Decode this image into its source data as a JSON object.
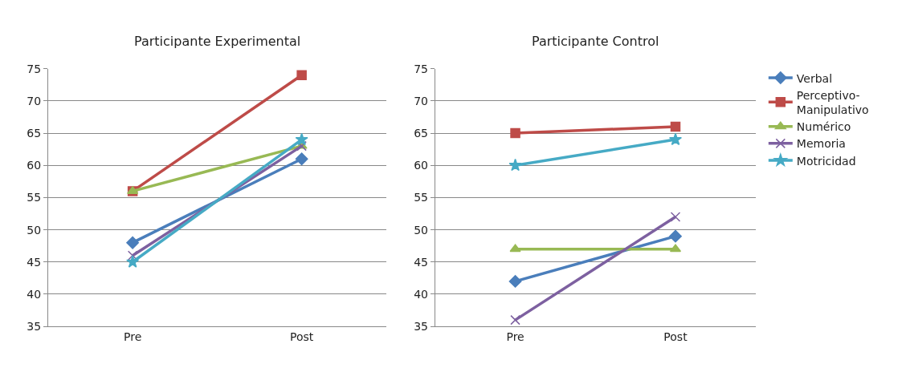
{
  "chart_data": [
    {
      "type": "line",
      "title": "Participante Experimental",
      "categories": [
        "Pre",
        "Post"
      ],
      "ylim": [
        35,
        75
      ],
      "yticks": [
        35,
        40,
        45,
        50,
        55,
        60,
        65,
        70,
        75
      ],
      "grid": "y",
      "legend": false,
      "series": [
        {
          "color": "#4a7ebb",
          "marker": "diamond",
          "values": [
            48,
            61
          ]
        },
        {
          "color": "#be4b48",
          "marker": "square",
          "values": [
            56,
            74
          ]
        },
        {
          "color": "#98b954",
          "marker": "triangle",
          "values": [
            56,
            63
          ]
        },
        {
          "color": "#7d60a0",
          "marker": "cross",
          "values": [
            46,
            63
          ]
        },
        {
          "color": "#46aac5",
          "marker": "star",
          "values": [
            45,
            64
          ]
        }
      ]
    },
    {
      "type": "line",
      "title": "Participante Control",
      "categories": [
        "Pre",
        "Post"
      ],
      "ylim": [
        35,
        75
      ],
      "yticks": [
        35,
        40,
        45,
        50,
        55,
        60,
        65,
        70,
        75
      ],
      "grid": "y",
      "legend": "right",
      "series": [
        {
          "name": "Verbal",
          "color": "#4a7ebb",
          "marker": "diamond",
          "values": [
            42,
            49
          ]
        },
        {
          "name": "Perceptivo-Manipulativo",
          "color": "#be4b48",
          "marker": "square",
          "values": [
            65,
            66
          ]
        },
        {
          "name": "Numérico",
          "color": "#98b954",
          "marker": "triangle",
          "values": [
            47,
            47
          ]
        },
        {
          "name": "Memoria",
          "color": "#7d60a0",
          "marker": "cross",
          "values": [
            36,
            52
          ]
        },
        {
          "name": "Motricidad",
          "color": "#46aac5",
          "marker": "star",
          "values": [
            60,
            64
          ]
        }
      ]
    }
  ]
}
